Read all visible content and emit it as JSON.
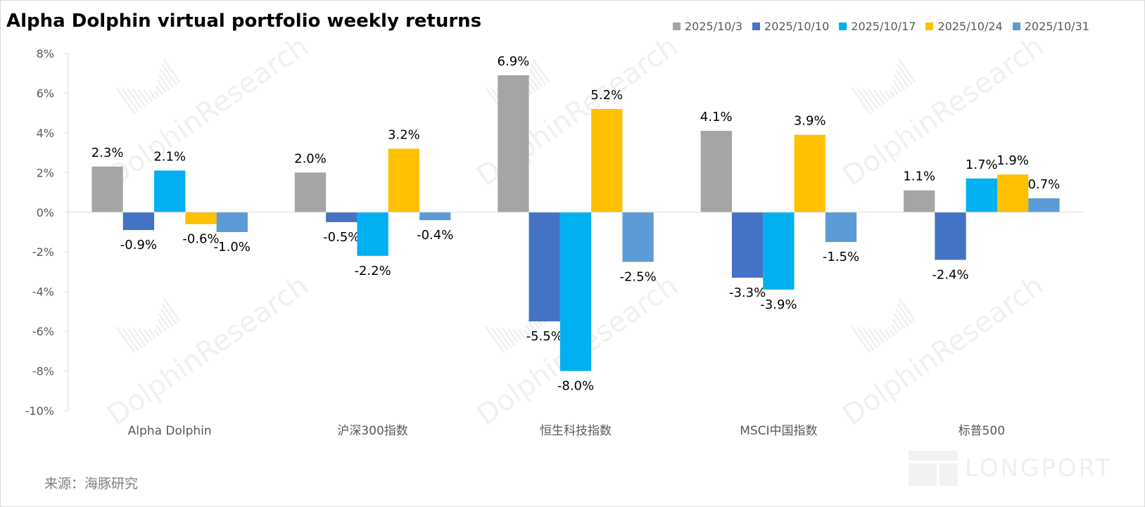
{
  "title": "Alpha Dolphin virtual portfolio weekly returns",
  "source": "来源：海豚研究",
  "brand": "LONGPORT",
  "chart_data": {
    "type": "bar",
    "title": "Alpha Dolphin virtual portfolio weekly returns",
    "xlabel": "",
    "ylabel": "",
    "ylim": [
      -10,
      8
    ],
    "yticks": [
      8,
      6,
      4,
      2,
      0,
      -2,
      -4,
      -6,
      -8,
      -10
    ],
    "ytick_labels": [
      "8%",
      "6%",
      "4%",
      "2%",
      "0%",
      "-2%",
      "-4%",
      "-6%",
      "-8%",
      "-10%"
    ],
    "categories": [
      "Alpha Dolphin",
      "沪深300指数",
      "恒生科技指数",
      "MSCI中国指数",
      "标普500"
    ],
    "series": [
      {
        "name": "2025/10/3",
        "color": "#a5a5a5",
        "values": [
          2.3,
          2.0,
          6.9,
          4.1,
          1.1
        ],
        "labels": [
          "2.3%",
          "2.0%",
          "6.9%",
          "4.1%",
          "1.1%"
        ]
      },
      {
        "name": "2025/10/10",
        "color": "#4472c4",
        "values": [
          -0.9,
          -0.5,
          -5.5,
          -3.3,
          -2.4
        ],
        "labels": [
          "-0.9%",
          "-0.5%",
          "-5.5%",
          "-3.3%",
          "-2.4%"
        ]
      },
      {
        "name": "2025/10/17",
        "color": "#00b0f0",
        "values": [
          2.1,
          -2.2,
          -8.0,
          -3.9,
          1.7
        ],
        "labels": [
          "2.1%",
          "-2.2%",
          "-8.0%",
          "-3.9%",
          "1.7%"
        ]
      },
      {
        "name": "2025/10/24",
        "color": "#ffc000",
        "values": [
          -0.6,
          3.2,
          5.2,
          3.9,
          1.9
        ],
        "labels": [
          "-0.6%",
          "3.2%",
          "5.2%",
          "3.9%",
          "1.9%"
        ]
      },
      {
        "name": "2025/10/31",
        "color": "#5b9bd5",
        "values": [
          -1.0,
          -0.4,
          -2.5,
          -1.5,
          0.7
        ],
        "labels": [
          "-1.0%",
          "-0.4%",
          "-2.5%",
          "-1.5%",
          "0.7%"
        ]
      }
    ],
    "legend_position": "top-right",
    "grid": false
  }
}
